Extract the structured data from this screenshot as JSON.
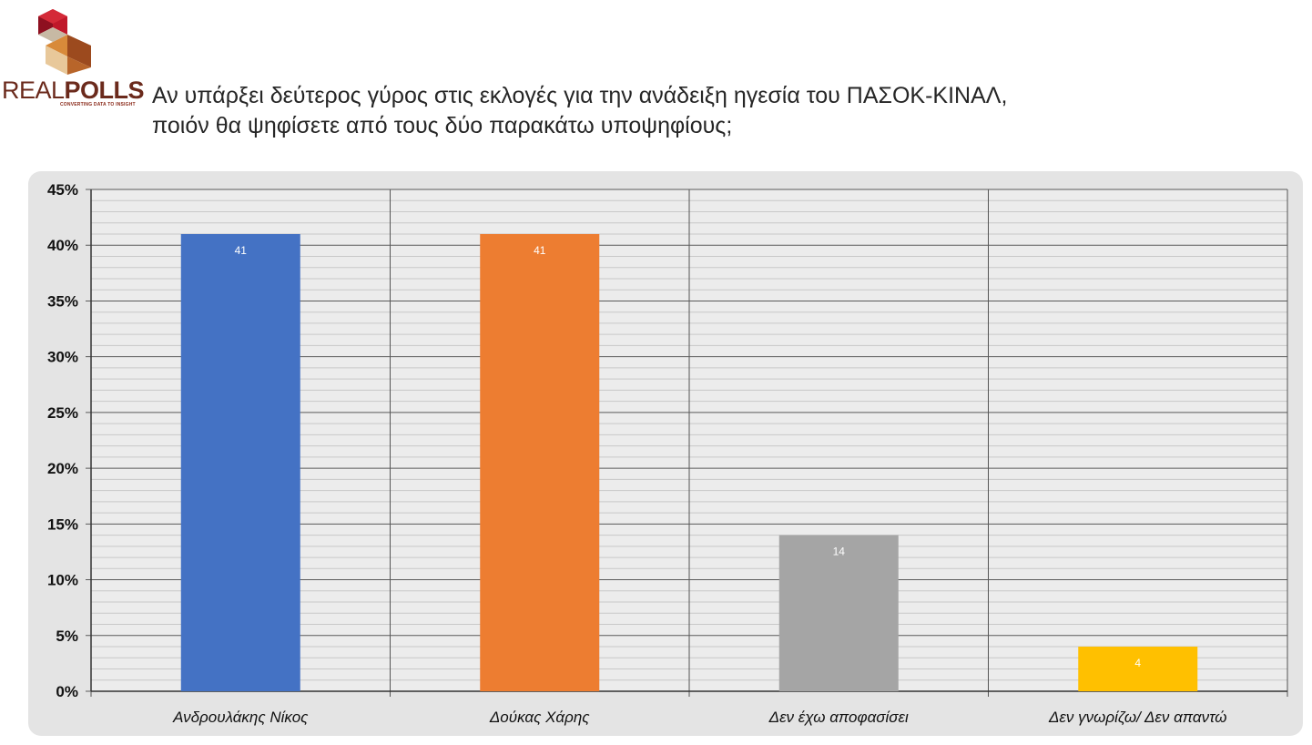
{
  "brand": {
    "name_part1": "REAL",
    "name_part2": "POLLS",
    "tagline": "CONVERTING DATA TO INSIGHT"
  },
  "title": {
    "line1": "Αν υπάρξει δεύτερος γύρος στις εκλογές για την ανάδειξη ηγεσία του ΠΑΣΟΚ-ΚΙΝΑΛ,",
    "line2": "ποιόν θα ψηφίσετε από τους δύο παρακάτω υποψηφίους;"
  },
  "chart_data": {
    "type": "bar",
    "categories": [
      "Ανδρουλάκης Νίκος",
      "Δούκας Χάρης",
      "Δεν έχω αποφασίσει",
      "Δεν γνωρίζω/ Δεν απαντώ"
    ],
    "values": [
      41,
      41,
      14,
      4
    ],
    "data_labels": [
      "41",
      "41",
      "14",
      "4"
    ],
    "bar_colors": [
      "#4472c4",
      "#ed7d31",
      "#a5a5a5",
      "#ffc000"
    ],
    "ylim": [
      0,
      45
    ],
    "yticks": [
      0,
      5,
      10,
      15,
      20,
      25,
      30,
      35,
      40,
      45
    ],
    "ytick_labels": [
      "0%",
      "5%",
      "10%",
      "15%",
      "20%",
      "25%",
      "30%",
      "35%",
      "40%",
      "45%"
    ],
    "minor_step": 1,
    "grid": true,
    "legend": "none",
    "xlabel": "",
    "ylabel": ""
  }
}
